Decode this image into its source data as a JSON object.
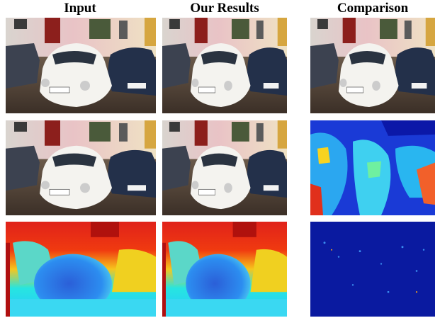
{
  "figure": {
    "columns": [
      "Input",
      "Our Results",
      "Comparison"
    ]
  }
}
